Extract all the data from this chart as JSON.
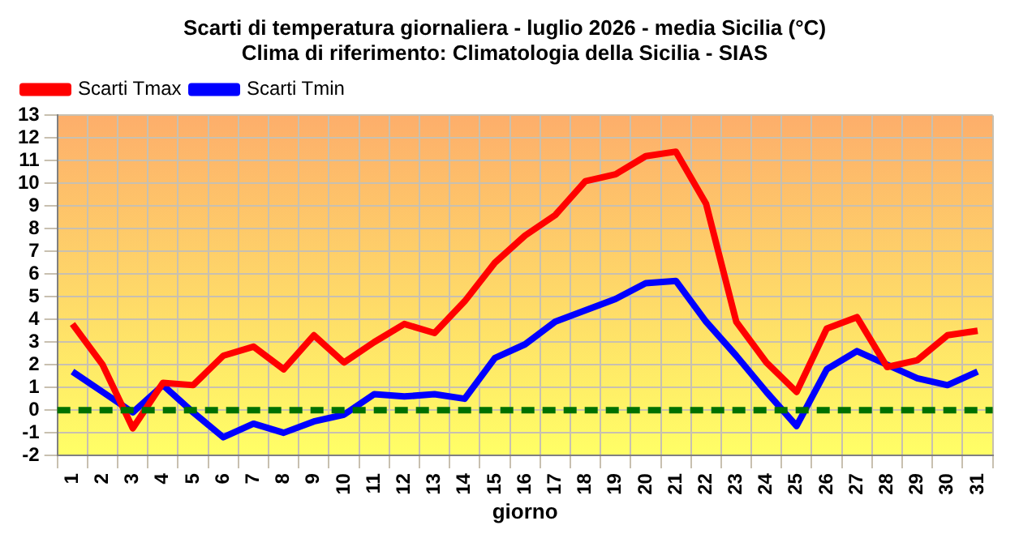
{
  "chart_data": {
    "type": "line",
    "title": "Scarti di temperatura giornaliera - luglio 2026 - media Sicilia (°C)",
    "subtitle": "Clima di riferimento: Climatologia della Sicilia - SIAS",
    "xlabel": "giorno",
    "categories": [
      "1",
      "2",
      "3",
      "4",
      "5",
      "6",
      "7",
      "8",
      "9",
      "10",
      "11",
      "12",
      "13",
      "14",
      "15",
      "16",
      "17",
      "18",
      "19",
      "20",
      "21",
      "22",
      "23",
      "24",
      "25",
      "26",
      "27",
      "28",
      "29",
      "30",
      "31"
    ],
    "series": [
      {
        "name": "Scarti Tmax",
        "color": "#ff0000",
        "values": [
          3.8,
          2.0,
          -0.8,
          1.2,
          1.1,
          2.4,
          2.8,
          1.8,
          3.3,
          2.1,
          3.0,
          3.8,
          3.4,
          4.8,
          6.5,
          7.7,
          8.6,
          10.1,
          10.4,
          11.2,
          11.4,
          9.1,
          3.9,
          2.1,
          0.8,
          3.6,
          4.1,
          1.9,
          2.2,
          3.3,
          3.5
        ]
      },
      {
        "name": "Scarti Tmin",
        "color": "#0000ff",
        "values": [
          1.7,
          0.8,
          -0.1,
          1.1,
          -0.1,
          -1.2,
          -0.6,
          -1.0,
          -0.5,
          -0.2,
          0.7,
          0.6,
          0.7,
          0.5,
          2.3,
          2.9,
          3.9,
          4.4,
          4.9,
          5.6,
          5.7,
          3.9,
          2.4,
          0.8,
          -0.7,
          1.8,
          2.6,
          2.0,
          1.4,
          1.1,
          1.7
        ]
      }
    ],
    "ylim": [
      -2,
      13
    ],
    "yticks": [
      -2,
      -1,
      0,
      1,
      2,
      3,
      4,
      5,
      6,
      7,
      8,
      9,
      10,
      11,
      12,
      13
    ],
    "ref_lines": [
      {
        "axis": "y",
        "value": 0,
        "color": "#007000",
        "line_style": "dashed"
      }
    ],
    "grid": true,
    "legend": "top left",
    "marker": "none",
    "line_style": "solid"
  }
}
